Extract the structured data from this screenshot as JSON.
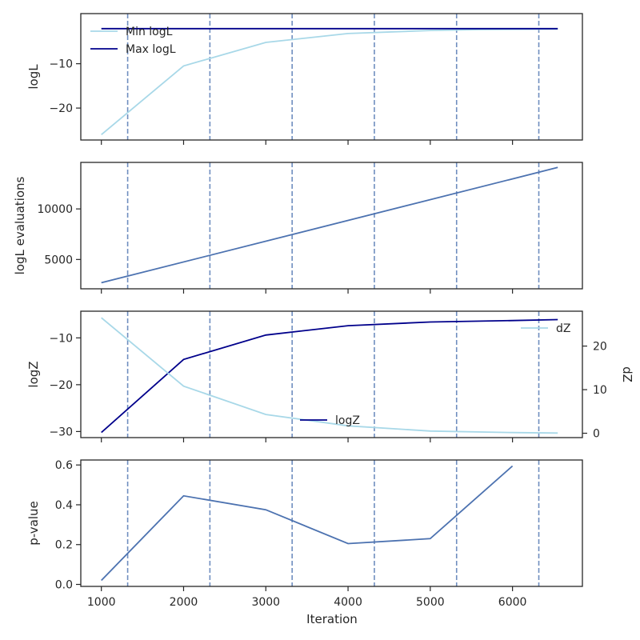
{
  "colors": {
    "light_blue": "#a8d8e8",
    "navy": "#00008b",
    "steel_blue": "#4c72b0",
    "vline": "#4c72b0",
    "axis": "#262626"
  },
  "vlines_x": [
    1320,
    2320,
    3320,
    4320,
    5320,
    6320
  ],
  "x_axis": {
    "label": "Iteration",
    "lim": [
      750,
      6850
    ],
    "ticks": [
      1000,
      2000,
      3000,
      4000,
      5000,
      6000
    ],
    "tick_labels": [
      "1000",
      "2000",
      "3000",
      "4000",
      "5000",
      "6000"
    ]
  },
  "chart_data": [
    {
      "type": "line",
      "ylabel": "logL",
      "ylim": [
        -27.2,
        1.3
      ],
      "yticks": [
        -10,
        -20
      ],
      "ytick_labels": [
        "−10",
        "−20"
      ],
      "legend_placement": "upper-left",
      "x": [
        1000,
        2000,
        3000,
        4000,
        5000,
        5600,
        6550
      ],
      "series": [
        {
          "name": "Min logL",
          "values": [
            -26.0,
            -10.5,
            -5.2,
            -3.2,
            -2.5,
            -2.3,
            -2.2
          ]
        },
        {
          "name": "Max logL",
          "values": [
            -2.1,
            -2.1,
            -2.1,
            -2.1,
            -2.1,
            -2.1,
            -2.1
          ]
        }
      ]
    },
    {
      "type": "line",
      "ylabel": "logL evaluations",
      "ylim": [
        2100,
        14600
      ],
      "yticks": [
        5000,
        10000
      ],
      "ytick_labels": [
        "5000",
        "10000"
      ],
      "x": [
        1000,
        6550
      ],
      "series": [
        {
          "values": [
            2700,
            14100
          ]
        }
      ]
    },
    {
      "type": "line",
      "ylabel": "logZ",
      "ylim": [
        -31.3,
        -4.3
      ],
      "yticks": [
        -10,
        -20,
        -30
      ],
      "ytick_labels": [
        "−10",
        "−20",
        "−30"
      ],
      "y2label": "dZ",
      "y2lim": [
        -1,
        28
      ],
      "y2ticks": [
        0,
        10,
        20
      ],
      "y2tick_labels": [
        "0",
        "10",
        "20"
      ],
      "x": [
        1000,
        2000,
        3000,
        4000,
        5000,
        6000,
        6550
      ],
      "series": [
        {
          "name": "logZ",
          "axis": "left",
          "values": [
            -30.2,
            -14.6,
            -9.4,
            -7.4,
            -6.6,
            -6.3,
            -6.1
          ]
        },
        {
          "name": "dZ",
          "axis": "right",
          "values": [
            26.5,
            10.8,
            4.3,
            1.7,
            0.5,
            0.15,
            0.05
          ]
        }
      ]
    },
    {
      "type": "line",
      "ylabel": "p-value",
      "ylim": [
        -0.01,
        0.625
      ],
      "yticks": [
        0.0,
        0.2,
        0.4,
        0.6
      ],
      "ytick_labels": [
        "0.0",
        "0.2",
        "0.4",
        "0.6"
      ],
      "x": [
        1000,
        2000,
        3000,
        4000,
        5000,
        6000
      ],
      "series": [
        {
          "values": [
            0.02,
            0.445,
            0.375,
            0.205,
            0.23,
            0.595
          ]
        }
      ]
    }
  ]
}
